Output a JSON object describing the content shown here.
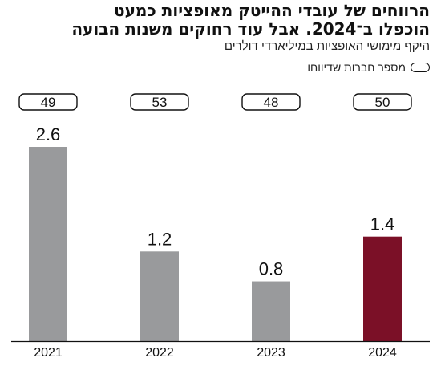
{
  "header": {
    "title_line1": "הרווחים של עובדי ההייטק מאופציות כמעט",
    "title_line2": "הוכפלו ב־2024. אבל עוד רחוקים משנות הבועה",
    "subtitle": "היקף מימושי האופציות במיליארדי דולרים",
    "legend_label": "מספר חברות שדיווחו"
  },
  "colors": {
    "bar_default": "#999a9c",
    "bar_highlight": "#7b1027",
    "axis": "#111111"
  },
  "chart_data": {
    "type": "bar",
    "categories": [
      "2021",
      "2022",
      "2023",
      "2024"
    ],
    "values": [
      2.6,
      1.2,
      0.8,
      1.4
    ],
    "value_labels": [
      "2.6",
      "1.2",
      "0.8",
      "1.4"
    ],
    "companies_reported": [
      "49",
      "53",
      "48",
      "50"
    ],
    "highlight_index": 3,
    "title": "הרווחים של עובדי ההייטק מאופציות כמעט הוכפלו ב־2024. אבל עוד רחוקים משנות הבועה",
    "subtitle": "היקף מימושי האופציות במיליארדי דולרים",
    "ylim": [
      0,
      2.6
    ],
    "grid": false
  }
}
